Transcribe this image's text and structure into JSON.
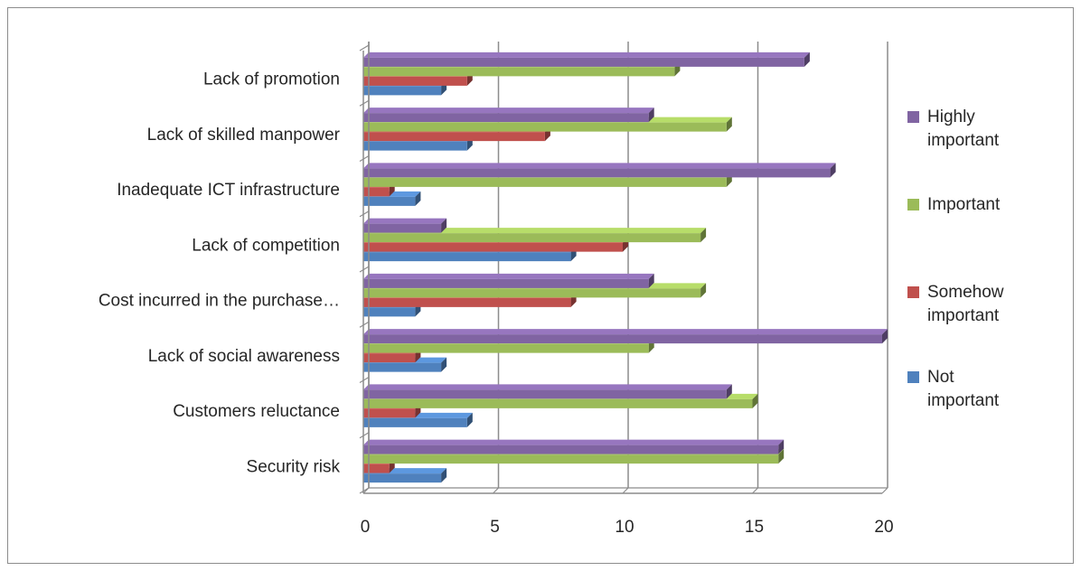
{
  "chart_data": {
    "type": "bar",
    "orientation": "horizontal",
    "style": "3d",
    "title": "",
    "xlabel": "",
    "ylabel": "",
    "xlim": [
      0,
      20
    ],
    "x_ticks": [
      "0",
      "5",
      "10",
      "15",
      "20"
    ],
    "grid": true,
    "legend_position": "right",
    "categories": [
      "Security risk",
      "Customers reluctance",
      "Lack of social awareness",
      "Cost incurred in the purchase…",
      "Lack of competition",
      "Inadequate ICT infrastructure",
      "Lack of skilled manpower",
      "Lack of promotion"
    ],
    "series": [
      {
        "name": "Not important",
        "color": "#4f81bd",
        "values": [
          3,
          4,
          3,
          2,
          8,
          2,
          4,
          3
        ]
      },
      {
        "name": "Somehow important",
        "color": "#c0504d",
        "values": [
          1,
          2,
          2,
          8,
          10,
          1,
          7,
          4
        ]
      },
      {
        "name": "Important",
        "color": "#9bbb59",
        "values": [
          16,
          15,
          11,
          13,
          13,
          14,
          14,
          12
        ]
      },
      {
        "name": "Highly important",
        "color": "#8064a2",
        "values": [
          16,
          14,
          20,
          11,
          3,
          18,
          11,
          17
        ]
      }
    ],
    "legend_labels": [
      [
        "Highly",
        "important"
      ],
      [
        "Important"
      ],
      [
        "Somehow",
        "important"
      ],
      [
        "Not",
        "important"
      ]
    ]
  }
}
